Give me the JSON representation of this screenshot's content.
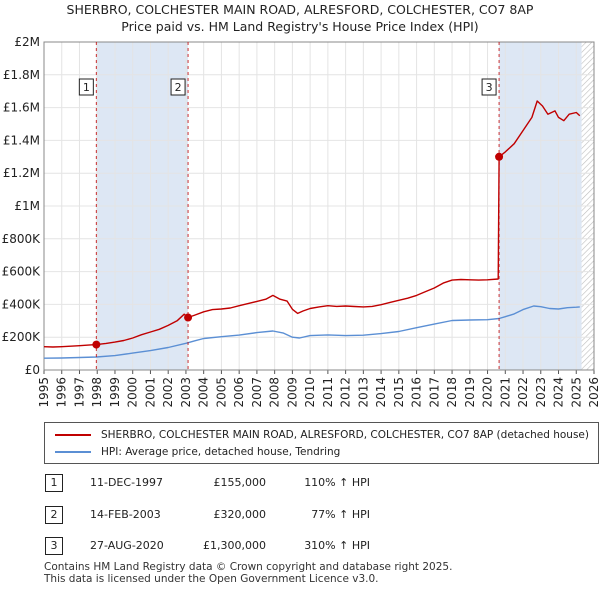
{
  "title_line1": "SHERBRO, COLCHESTER MAIN ROAD, ALRESFORD, COLCHESTER, CO7 8AP",
  "title_line2": "Price paid vs. HM Land Registry's House Price Index (HPI)",
  "colors": {
    "property": "#c00000",
    "hpi": "#5b8fd4",
    "shade": "#dde7f4",
    "grid": "#e4e4e4",
    "marker_line": "#c00000"
  },
  "chart_data": {
    "type": "line",
    "y_min": 0,
    "y_max": 2000000,
    "x_min": 1995,
    "x_max": 2026,
    "y_ticks": [
      {
        "value": 0,
        "label": "£0"
      },
      {
        "value": 200000,
        "label": "£200K"
      },
      {
        "value": 400000,
        "label": "£400K"
      },
      {
        "value": 600000,
        "label": "£600K"
      },
      {
        "value": 800000,
        "label": "£800K"
      },
      {
        "value": 1000000,
        "label": "£1M"
      },
      {
        "value": 1200000,
        "label": "£1.2M"
      },
      {
        "value": 1400000,
        "label": "£1.4M"
      },
      {
        "value": 1600000,
        "label": "£1.6M"
      },
      {
        "value": 1800000,
        "label": "£1.8M"
      },
      {
        "value": 2000000,
        "label": "£2M"
      }
    ],
    "x_ticks": [
      "1995",
      "1996",
      "1997",
      "1998",
      "1999",
      "2000",
      "2001",
      "2002",
      "2003",
      "2004",
      "2005",
      "2006",
      "2007",
      "2008",
      "2009",
      "2010",
      "2011",
      "2012",
      "2013",
      "2014",
      "2015",
      "2016",
      "2017",
      "2018",
      "2019",
      "2020",
      "2021",
      "2022",
      "2023",
      "2024",
      "2025",
      "2026"
    ],
    "shaded_ranges": [
      [
        1997.95,
        2003.12
      ],
      [
        2020.65,
        2025.3
      ]
    ],
    "hatch_from": 2025.3,
    "series": [
      {
        "name": "SHERBRO, COLCHESTER MAIN ROAD, ALRESFORD, COLCHESTER, CO7 8AP (detached house)",
        "key": "property",
        "points": [
          [
            1995.0,
            142000
          ],
          [
            1995.5,
            140000
          ],
          [
            1996.0,
            142000
          ],
          [
            1996.5,
            145000
          ],
          [
            1997.0,
            148000
          ],
          [
            1997.5,
            152000
          ],
          [
            1997.95,
            155000
          ],
          [
            1998.5,
            162000
          ],
          [
            1999.0,
            170000
          ],
          [
            1999.5,
            180000
          ],
          [
            2000.0,
            195000
          ],
          [
            2000.5,
            215000
          ],
          [
            2001.0,
            232000
          ],
          [
            2001.5,
            248000
          ],
          [
            2002.0,
            272000
          ],
          [
            2002.5,
            300000
          ],
          [
            2002.9,
            340000
          ],
          [
            2003.12,
            320000
          ],
          [
            2003.5,
            335000
          ],
          [
            2004.0,
            355000
          ],
          [
            2004.5,
            368000
          ],
          [
            2005.0,
            372000
          ],
          [
            2005.5,
            378000
          ],
          [
            2006.0,
            392000
          ],
          [
            2006.5,
            405000
          ],
          [
            2007.0,
            418000
          ],
          [
            2007.5,
            432000
          ],
          [
            2007.9,
            455000
          ],
          [
            2008.3,
            432000
          ],
          [
            2008.7,
            420000
          ],
          [
            2009.0,
            370000
          ],
          [
            2009.3,
            345000
          ],
          [
            2009.6,
            360000
          ],
          [
            2010.0,
            375000
          ],
          [
            2010.5,
            385000
          ],
          [
            2011.0,
            392000
          ],
          [
            2011.5,
            388000
          ],
          [
            2012.0,
            390000
          ],
          [
            2012.5,
            387000
          ],
          [
            2013.0,
            385000
          ],
          [
            2013.5,
            388000
          ],
          [
            2014.0,
            398000
          ],
          [
            2014.5,
            412000
          ],
          [
            2015.0,
            425000
          ],
          [
            2015.5,
            438000
          ],
          [
            2016.0,
            455000
          ],
          [
            2016.5,
            478000
          ],
          [
            2017.0,
            500000
          ],
          [
            2017.5,
            530000
          ],
          [
            2018.0,
            548000
          ],
          [
            2018.5,
            552000
          ],
          [
            2019.0,
            550000
          ],
          [
            2019.5,
            548000
          ],
          [
            2020.0,
            550000
          ],
          [
            2020.6,
            555000
          ],
          [
            2020.65,
            1300000
          ],
          [
            2021.0,
            1330000
          ],
          [
            2021.5,
            1380000
          ],
          [
            2022.0,
            1460000
          ],
          [
            2022.5,
            1540000
          ],
          [
            2022.8,
            1640000
          ],
          [
            2023.1,
            1610000
          ],
          [
            2023.4,
            1560000
          ],
          [
            2023.8,
            1580000
          ],
          [
            2024.0,
            1540000
          ],
          [
            2024.3,
            1520000
          ],
          [
            2024.6,
            1560000
          ],
          [
            2025.0,
            1570000
          ],
          [
            2025.2,
            1550000
          ]
        ]
      },
      {
        "name": "HPI: Average price, detached house, Tendring",
        "key": "hpi",
        "points": [
          [
            1995.0,
            72000
          ],
          [
            1996.0,
            73000
          ],
          [
            1997.0,
            76000
          ],
          [
            1997.95,
            79000
          ],
          [
            1999.0,
            88000
          ],
          [
            2000.0,
            103000
          ],
          [
            2001.0,
            118000
          ],
          [
            2002.0,
            137000
          ],
          [
            2003.0,
            163000
          ],
          [
            2003.5,
            178000
          ],
          [
            2004.0,
            192000
          ],
          [
            2005.0,
            203000
          ],
          [
            2006.0,
            213000
          ],
          [
            2007.0,
            228000
          ],
          [
            2007.9,
            238000
          ],
          [
            2008.5,
            225000
          ],
          [
            2009.0,
            200000
          ],
          [
            2009.4,
            195000
          ],
          [
            2010.0,
            210000
          ],
          [
            2011.0,
            214000
          ],
          [
            2012.0,
            210000
          ],
          [
            2013.0,
            212000
          ],
          [
            2014.0,
            222000
          ],
          [
            2015.0,
            235000
          ],
          [
            2016.0,
            258000
          ],
          [
            2017.0,
            280000
          ],
          [
            2018.0,
            302000
          ],
          [
            2019.0,
            305000
          ],
          [
            2020.0,
            307000
          ],
          [
            2020.65,
            314000
          ],
          [
            2021.0,
            325000
          ],
          [
            2021.5,
            342000
          ],
          [
            2022.0,
            368000
          ],
          [
            2022.6,
            390000
          ],
          [
            2023.0,
            386000
          ],
          [
            2023.5,
            375000
          ],
          [
            2024.0,
            372000
          ],
          [
            2024.5,
            380000
          ],
          [
            2025.0,
            383000
          ],
          [
            2025.2,
            385000
          ]
        ]
      }
    ],
    "sales": [
      {
        "id": "1",
        "x": 1997.95,
        "value": 155000
      },
      {
        "id": "2",
        "x": 2003.12,
        "value": 320000
      },
      {
        "id": "3",
        "x": 2020.65,
        "value": 1300000
      }
    ]
  },
  "legend": {
    "property_label": "SHERBRO, COLCHESTER MAIN ROAD, ALRESFORD, COLCHESTER, CO7 8AP (detached house)",
    "hpi_label": "HPI: Average price, detached house, Tendring"
  },
  "transactions": [
    {
      "id": "1",
      "date": "11-DEC-1997",
      "price": "£155,000",
      "hpi": "110% ↑ HPI"
    },
    {
      "id": "2",
      "date": "14-FEB-2003",
      "price": "£320,000",
      "hpi": "77% ↑ HPI"
    },
    {
      "id": "3",
      "date": "27-AUG-2020",
      "price": "£1,300,000",
      "hpi": "310% ↑ HPI"
    }
  ],
  "footer_line1": "Contains HM Land Registry data © Crown copyright and database right 2025.",
  "footer_line2": "This data is licensed under the Open Government Licence v3.0."
}
